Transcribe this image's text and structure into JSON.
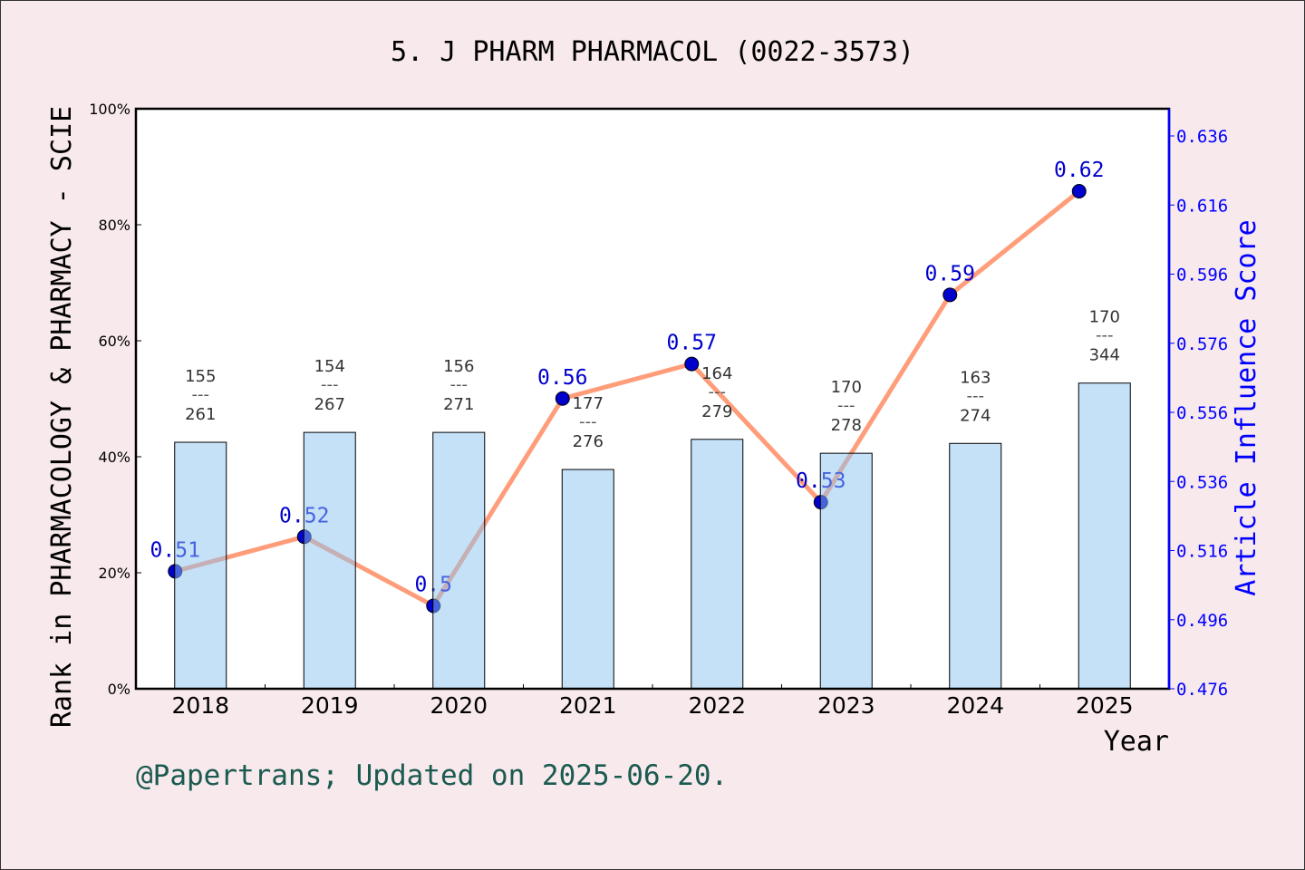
{
  "chart_data": {
    "type": "bar+line",
    "title": "5. J PHARM PHARMACOL (0022-3573)",
    "xlabel": "Year",
    "ylabel_left": "Rank in PHARMACOLOGY & PHARMACY - SCIE",
    "ylabel_right": "Article Influence Score",
    "categories": [
      "2018",
      "2019",
      "2020",
      "2021",
      "2022",
      "2023",
      "2024",
      "2025"
    ],
    "left_axis": {
      "range": [
        0,
        100
      ],
      "ticks": [
        "0%",
        "20%",
        "40%",
        "60%",
        "80%",
        "100%"
      ]
    },
    "right_axis": {
      "range": [
        0.476,
        0.646
      ],
      "ticks": [
        "0.476",
        "0.496",
        "0.516",
        "0.536",
        "0.556",
        "0.576",
        "0.596",
        "0.616",
        "0.636"
      ]
    },
    "bars": {
      "values_percent": [
        42.5,
        44.2,
        44.2,
        37.8,
        43.0,
        40.6,
        42.3,
        52.7
      ],
      "rank": [
        "155",
        "154",
        "156",
        "177",
        "164",
        "170",
        "163",
        "170"
      ],
      "total": [
        "261",
        "267",
        "271",
        "276",
        "279",
        "278",
        "274",
        "344"
      ],
      "separator": "---"
    },
    "line": {
      "values": [
        0.51,
        0.52,
        0.5,
        0.56,
        0.57,
        0.53,
        0.59,
        0.62
      ],
      "labels": [
        "0.51",
        "0.52",
        "0.5",
        "0.56",
        "0.57",
        "0.53",
        "0.59",
        "0.62"
      ]
    },
    "colors": {
      "bar": "#8cc4f2",
      "line": "#ff9d7a",
      "point": "#0000cc",
      "right_axis": "#0000ff",
      "footer": "#1a5a50"
    },
    "grid": false
  },
  "footer": "@Papertrans; Updated on 2025-06-20."
}
